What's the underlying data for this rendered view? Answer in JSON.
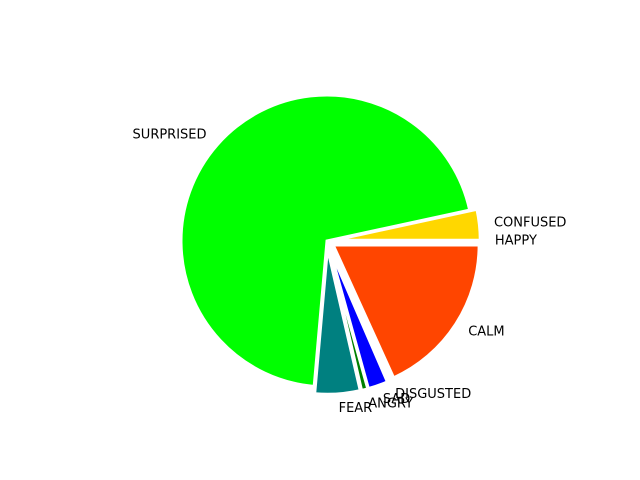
{
  "chart_data": {
    "type": "pie",
    "title": "",
    "start_angle_deg": 0,
    "direction": "counterclockwise",
    "slices": [
      {
        "label": "CONFUSED",
        "value": 3.4,
        "color": "#FFD700",
        "explode": 0.05
      },
      {
        "label": "SURPRISED",
        "value": 70.2,
        "color": "#00FF00",
        "explode": 0.0
      },
      {
        "label": "FEAR",
        "value": 5.0,
        "color": "#008080",
        "explode": 0.05
      },
      {
        "label": "ANGRY",
        "value": 0.7,
        "color": "#008000",
        "explode": 0.05
      },
      {
        "label": "SAD",
        "value": 2.2,
        "color": "#0000FF",
        "explode": 0.05
      },
      {
        "label": "DISGUSTED",
        "value": 0.3,
        "color": "#800080",
        "explode": 0.05
      },
      {
        "label": "CALM",
        "value": 18.2,
        "color": "#FF4500",
        "explode": 0.05
      },
      {
        "label": "HAPPY",
        "value": 0.0,
        "color": "#FFFF00",
        "explode": 0.05
      }
    ]
  }
}
